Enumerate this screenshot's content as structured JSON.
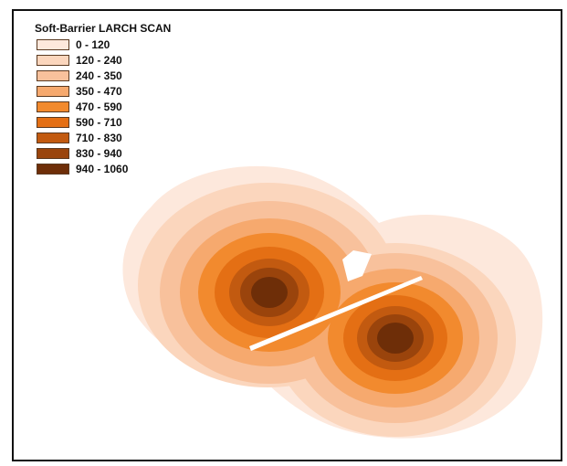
{
  "legend": {
    "title": "Soft-Barrier LARCH SCAN",
    "classes": [
      {
        "label": "0 - 120",
        "color": "#fde8dc"
      },
      {
        "label": "120 - 240",
        "color": "#fbd6bd"
      },
      {
        "label": "240 - 350",
        "color": "#f8c19c"
      },
      {
        "label": "350 - 470",
        "color": "#f6a96e"
      },
      {
        "label": "470 - 590",
        "color": "#f28a2e"
      },
      {
        "label": "590 - 710",
        "color": "#e46f14"
      },
      {
        "label": "710 - 830",
        "color": "#c25a10"
      },
      {
        "label": "830 - 940",
        "color": "#9a440c"
      },
      {
        "label": "940 - 1060",
        "color": "#6e2e08"
      }
    ]
  },
  "map": {
    "barrier_color": "#ffffff",
    "frame_color": "#111111"
  }
}
